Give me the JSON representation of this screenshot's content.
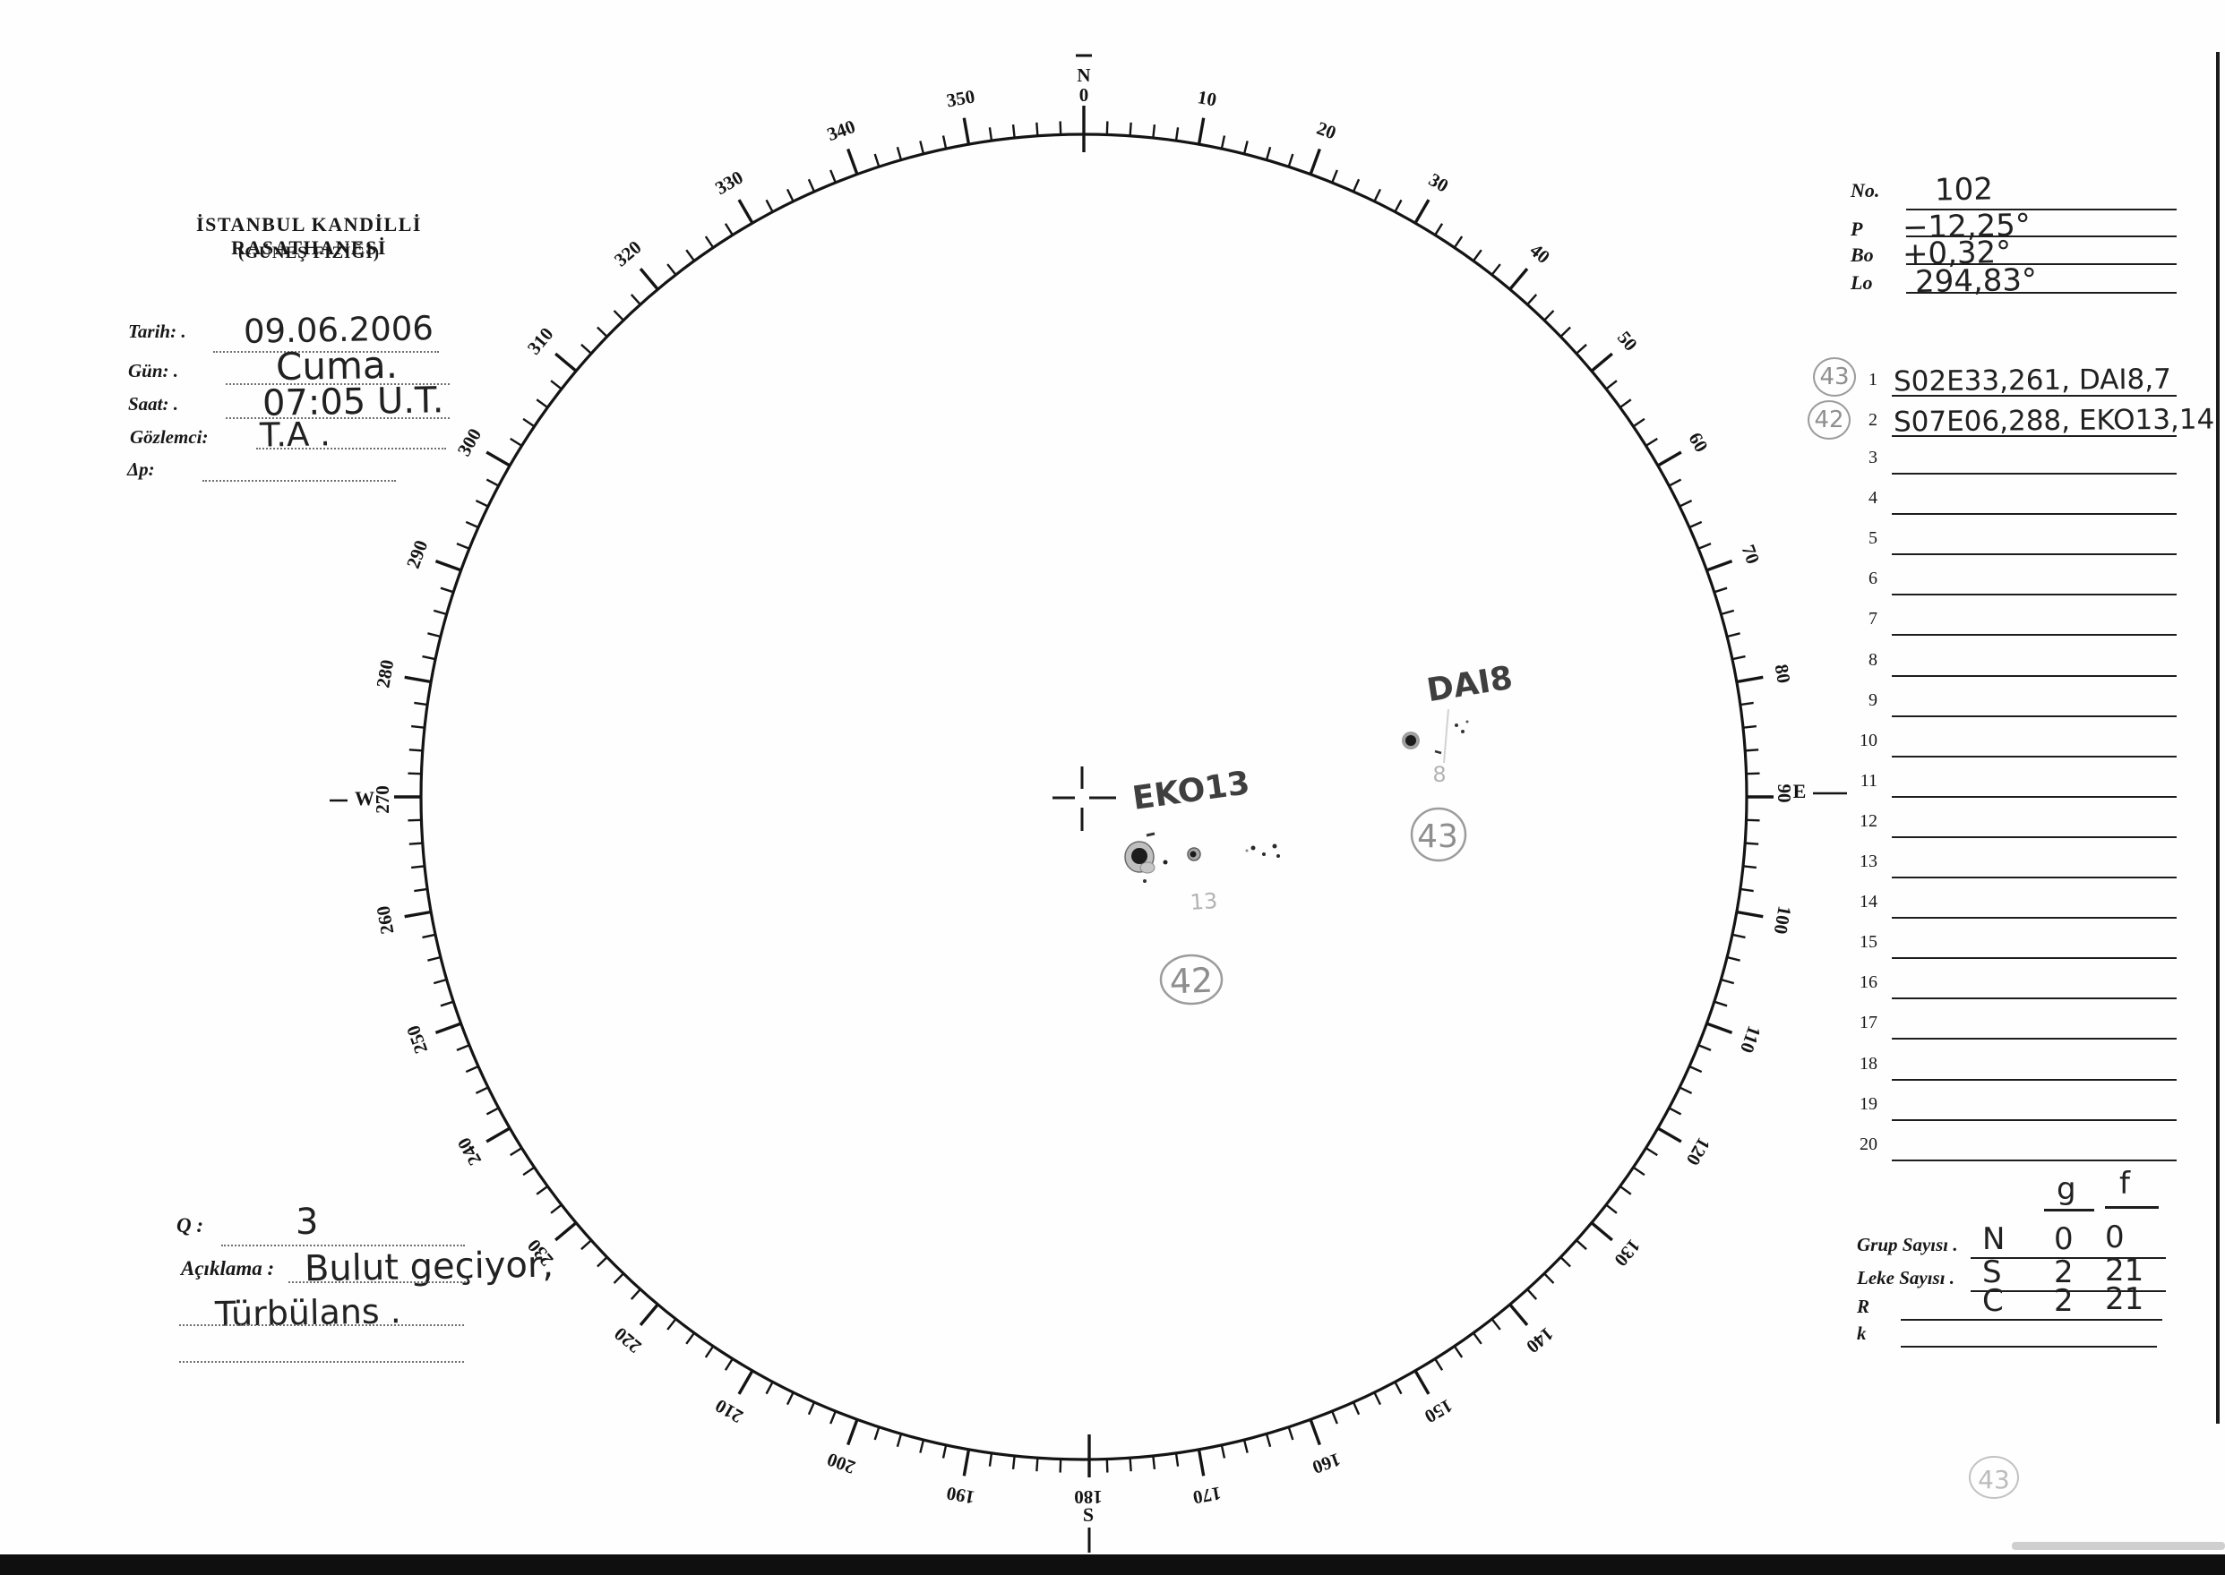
{
  "header": {
    "title": "İSTANBUL KANDİLLİ RASATHANESİ",
    "subtitle": "(GÜNEŞ FİZİĞİ)"
  },
  "observation": {
    "fields": [
      {
        "label": "Tarih: .",
        "value": "09.06.2006"
      },
      {
        "label": "Gün: .",
        "value": "Cuma."
      },
      {
        "label": "Saat: .",
        "value": "07:05 U.T."
      },
      {
        "label": "Gözlemci:",
        "value": "T.A ."
      },
      {
        "label": "Δp:",
        "value": ""
      }
    ]
  },
  "ephemeris": {
    "rows": [
      {
        "label": "No.",
        "value": "102"
      },
      {
        "label": "P",
        "value": "−12,25°"
      },
      {
        "label": "Bo",
        "value": "+0,32°"
      },
      {
        "label": "Lo",
        "value": "294,83°"
      }
    ]
  },
  "dial": {
    "north_letter": "N",
    "north_degree": "0",
    "east_letter": "E",
    "east_degree": "90",
    "south_letter": "S",
    "south_degree": "180",
    "west_letter": "W",
    "west_degree": "270",
    "degree_labels": [
      "10",
      "20",
      "30",
      "40",
      "50",
      "60",
      "70",
      "80",
      "100",
      "110",
      "120",
      "130",
      "140",
      "150",
      "160",
      "170",
      "190",
      "200",
      "210",
      "220",
      "230",
      "240",
      "250",
      "260",
      "280",
      "290",
      "300",
      "310",
      "320",
      "330",
      "340",
      "350"
    ]
  },
  "drawing": {
    "groups": [
      {
        "name_label": "EKO13",
        "faint_number": "13",
        "circled_number": "42"
      },
      {
        "name_label": "DAI8",
        "faint_number": "8",
        "circled_number": "43"
      }
    ],
    "corner_circled_number": "43"
  },
  "group_table": {
    "rows": [
      {
        "num": "1",
        "circled": "43",
        "entry": "S02E33,261, DAI8,7"
      },
      {
        "num": "2",
        "circled": "42",
        "entry": "S07E06,288, EKO13,14"
      },
      {
        "num": "3",
        "circled": "",
        "entry": ""
      },
      {
        "num": "4",
        "circled": "",
        "entry": ""
      },
      {
        "num": "5",
        "circled": "",
        "entry": ""
      },
      {
        "num": "6",
        "circled": "",
        "entry": ""
      },
      {
        "num": "7",
        "circled": "",
        "entry": ""
      },
      {
        "num": "8",
        "circled": "",
        "entry": ""
      },
      {
        "num": "9",
        "circled": "",
        "entry": ""
      },
      {
        "num": "10",
        "circled": "",
        "entry": ""
      },
      {
        "num": "11",
        "circled": "",
        "entry": ""
      },
      {
        "num": "12",
        "circled": "",
        "entry": ""
      },
      {
        "num": "13",
        "circled": "",
        "entry": ""
      },
      {
        "num": "14",
        "circled": "",
        "entry": ""
      },
      {
        "num": "15",
        "circled": "",
        "entry": ""
      },
      {
        "num": "16",
        "circled": "",
        "entry": ""
      },
      {
        "num": "17",
        "circled": "",
        "entry": ""
      },
      {
        "num": "18",
        "circled": "",
        "entry": ""
      },
      {
        "num": "19",
        "circled": "",
        "entry": ""
      },
      {
        "num": "20",
        "circled": "",
        "entry": ""
      }
    ]
  },
  "summary": {
    "col_g": "g",
    "col_f": "f",
    "rows": [
      {
        "label": "Grup Sayısı .",
        "hand": "N",
        "g": "0",
        "f": "0"
      },
      {
        "label": "Leke Sayısı .",
        "hand": "S",
        "g": "2",
        "f": "21"
      },
      {
        "label": "R",
        "hand": "C",
        "g": "2",
        "f": "21"
      },
      {
        "label": "k",
        "hand": "",
        "g": "",
        "f": ""
      }
    ]
  },
  "quality": {
    "label": "Q :",
    "value": "3"
  },
  "remarks": {
    "label": "Açıklama :",
    "line1": "Bulut geçiyor,",
    "line2": "Türbülans ."
  }
}
